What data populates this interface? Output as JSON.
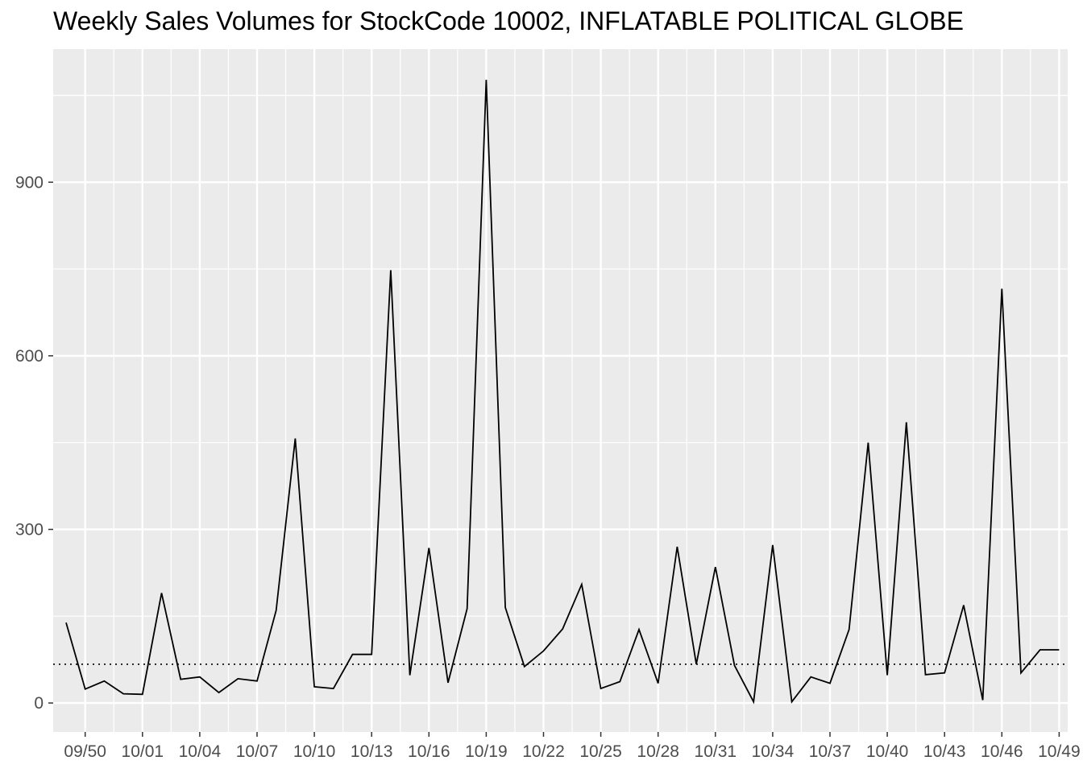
{
  "chart_data": {
    "type": "line",
    "title": "Weekly Sales Volumes for StockCode 10002, INFLATABLE POLITICAL GLOBE",
    "xlabel": "",
    "ylabel": "",
    "x_tick_labels": [
      "09/50",
      "10/01",
      "10/04",
      "10/07",
      "10/10",
      "10/13",
      "10/16",
      "10/19",
      "10/22",
      "10/25",
      "10/28",
      "10/31",
      "10/34",
      "10/37",
      "10/40",
      "10/43",
      "10/46",
      "10/49"
    ],
    "y_ticks": [
      0,
      300,
      600,
      900
    ],
    "ylim": [
      -50,
      1130
    ],
    "grid": true,
    "series": [
      {
        "values": [
          139,
          24,
          38,
          16,
          15,
          190,
          41,
          45,
          18,
          42,
          38,
          160,
          457,
          28,
          25,
          84,
          84,
          748,
          48,
          268,
          35,
          163,
          1077,
          165,
          63,
          90,
          128,
          205,
          25,
          37,
          127,
          34,
          270,
          67,
          235,
          65,
          2,
          273,
          2,
          45,
          34,
          127,
          450,
          48,
          485,
          49,
          52,
          169,
          5,
          716,
          52,
          92,
          92
        ]
      }
    ],
    "reference_line": {
      "value": 67,
      "style": "dotted"
    }
  }
}
